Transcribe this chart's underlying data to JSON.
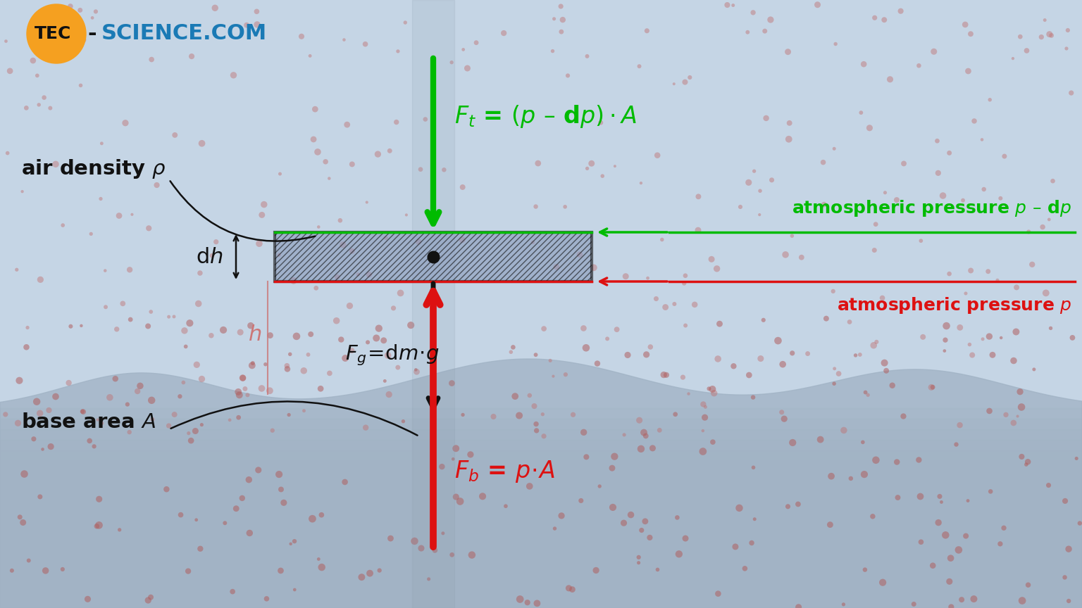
{
  "bg_sky_color": "#c5d5e5",
  "particle_color_sky": "#c07070",
  "particle_color_ground": "#b06060",
  "box_fill_color": "#8899bb",
  "box_edge_color": "#111111",
  "arrow_green_color": "#00bb00",
  "arrow_red_color": "#dd1111",
  "arrow_black_color": "#111111",
  "text_green_color": "#00bb00",
  "text_red_color": "#dd1111",
  "text_black_color": "#111111",
  "text_pink_color": "#cc7777",
  "logo_orange": "#f5a020",
  "logo_blue": "#1a7ab5",
  "logo_black": "#111111",
  "n_particles_sky": 300,
  "n_particles_ground": 250,
  "seed": 42,
  "figw": 15.36,
  "figh": 8.64,
  "dpi": 100
}
